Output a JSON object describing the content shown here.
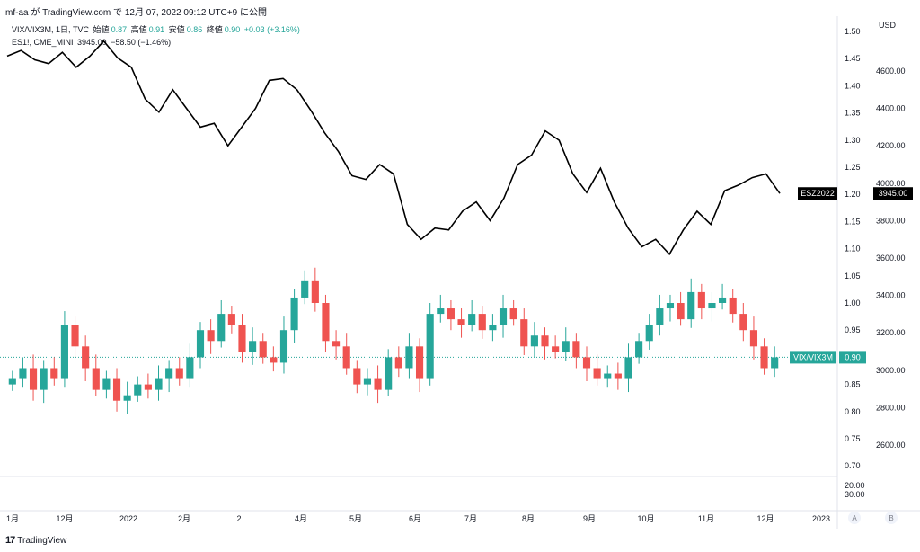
{
  "header": {
    "caption": "mf-aa が TradingView.com で 12月 07, 2022 09:12 UTC+9 に公開"
  },
  "legend": {
    "line1": {
      "symbol": "VIX/VIX3M, 1日, TVC",
      "open_label": "始値",
      "open": "0.87",
      "high_label": "高値",
      "high": "0.91",
      "low_label": "安値",
      "low": "0.86",
      "close_label": "終値",
      "close": "0.90",
      "change": "+0.03 (+3.16%)"
    },
    "line2": {
      "symbol": "ES1!, CME_MINI",
      "value": "3945.00",
      "change": "−58.50 (−1.46%)"
    }
  },
  "footer": {
    "brand": "TradingView"
  },
  "colors": {
    "up": "#26a69a",
    "down": "#ef5350",
    "line": "#000000",
    "axis_text": "#131722"
  },
  "chart_data": [
    {
      "type": "line",
      "name": "ESZ2022",
      "axis": "right",
      "y_ticks": [
        "4600.00",
        "4400.00",
        "4200.00",
        "4000.00",
        "3800.00",
        "3600.00",
        "3400.00",
        "3200.00",
        "3000.00",
        "2800.00",
        "2600.00"
      ],
      "unit": "USD",
      "last_label": "ESZ2022",
      "last_value": "3945.00",
      "x": [
        "2021-11-08",
        "2021-11-15",
        "2021-11-22",
        "2021-11-29",
        "2021-12-06",
        "2021-12-13",
        "2021-12-20",
        "2021-12-27",
        "2022-01-03",
        "2022-01-10",
        "2022-01-17",
        "2022-01-24",
        "2022-01-31",
        "2022-02-07",
        "2022-02-14",
        "2022-02-21",
        "2022-02-28",
        "2022-03-07",
        "2022-03-14",
        "2022-03-21",
        "2022-03-28",
        "2022-04-04",
        "2022-04-11",
        "2022-04-18",
        "2022-04-25",
        "2022-05-02",
        "2022-05-09",
        "2022-05-16",
        "2022-05-23",
        "2022-05-30",
        "2022-06-06",
        "2022-06-13",
        "2022-06-20",
        "2022-06-27",
        "2022-07-04",
        "2022-07-11",
        "2022-07-18",
        "2022-07-25",
        "2022-08-01",
        "2022-08-08",
        "2022-08-15",
        "2022-08-22",
        "2022-08-29",
        "2022-09-05",
        "2022-09-12",
        "2022-09-19",
        "2022-09-26",
        "2022-10-03",
        "2022-10-10",
        "2022-10-17",
        "2022-10-24",
        "2022-10-31",
        "2022-11-07",
        "2022-11-14",
        "2022-11-21",
        "2022-11-28",
        "2022-12-05"
      ],
      "values": [
        4680,
        4710,
        4660,
        4640,
        4700,
        4620,
        4680,
        4760,
        4670,
        4620,
        4450,
        4380,
        4500,
        4400,
        4300,
        4320,
        4200,
        4300,
        4400,
        4550,
        4560,
        4500,
        4390,
        4270,
        4170,
        4040,
        4020,
        4100,
        4050,
        3780,
        3700,
        3760,
        3750,
        3850,
        3900,
        3800,
        3920,
        4100,
        4150,
        4280,
        4230,
        4050,
        3950,
        4080,
        3900,
        3760,
        3660,
        3700,
        3620,
        3750,
        3850,
        3780,
        3960,
        3990,
        4030,
        4050,
        3945
      ]
    },
    {
      "type": "candlestick",
      "name": "VIX/VIX3M",
      "axis": "left",
      "y_ticks": [
        "1.50",
        "1.45",
        "1.40",
        "1.35",
        "1.30",
        "1.25",
        "1.20",
        "1.15",
        "1.10",
        "1.05",
        "1.00",
        "0.95",
        "0.90",
        "0.85",
        "0.80",
        "0.75",
        "0.70"
      ],
      "sub_ticks": [
        "20.00",
        "30.00"
      ],
      "last_label": "VIX/VIX3M",
      "last_value": "0.90",
      "x_ticks": [
        "1月",
        "12月",
        "2022",
        "2月",
        "2",
        "4月",
        "5月",
        "6月",
        "7月",
        "8月",
        "9月",
        "10月",
        "11月",
        "12月",
        "2023"
      ],
      "axis_buttons": [
        "A",
        "B"
      ],
      "close": [
        0.86,
        0.88,
        0.84,
        0.88,
        0.86,
        0.96,
        0.92,
        0.88,
        0.84,
        0.86,
        0.82,
        0.83,
        0.85,
        0.84,
        0.86,
        0.88,
        0.86,
        0.9,
        0.95,
        0.93,
        0.98,
        0.96,
        0.91,
        0.93,
        0.9,
        0.89,
        0.95,
        1.01,
        1.04,
        1.0,
        0.93,
        0.92,
        0.88,
        0.85,
        0.86,
        0.84,
        0.9,
        0.88,
        0.92,
        0.86,
        0.98,
        0.99,
        0.97,
        0.96,
        0.98,
        0.95,
        0.96,
        0.99,
        0.97,
        0.92,
        0.94,
        0.92,
        0.91,
        0.93,
        0.9,
        0.88,
        0.86,
        0.87,
        0.86,
        0.9,
        0.93,
        0.96,
        0.99,
        1.0,
        0.97,
        1.02,
        0.99,
        1.0,
        1.01,
        0.98,
        0.95,
        0.92,
        0.88,
        0.9
      ]
    }
  ]
}
